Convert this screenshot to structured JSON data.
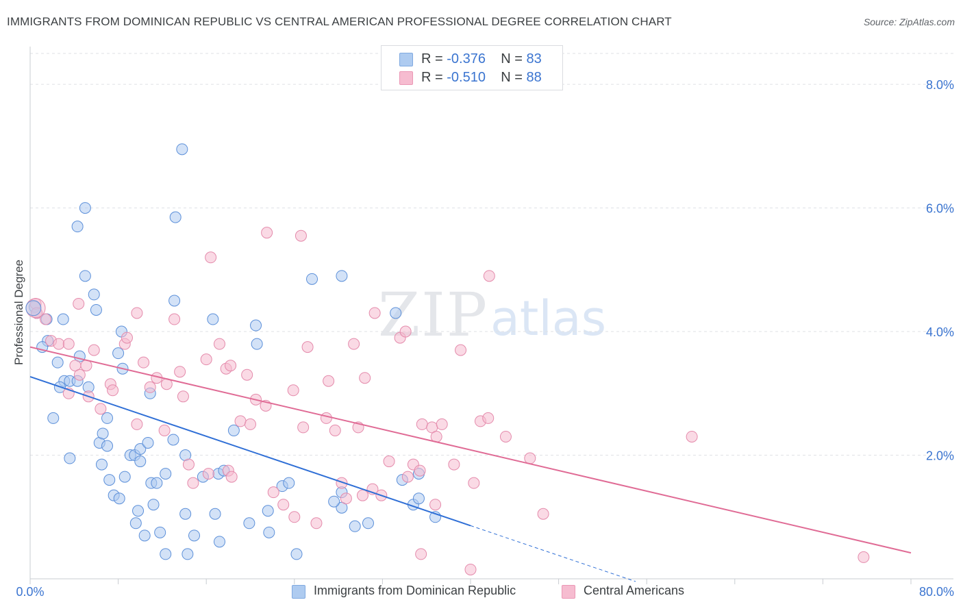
{
  "header": {
    "title": "IMMIGRANTS FROM DOMINICAN REPUBLIC VS CENTRAL AMERICAN PROFESSIONAL DEGREE CORRELATION CHART",
    "source": "Source: ZipAtlas.com"
  },
  "watermark": {
    "zip": "ZIP",
    "atlas": "atlas"
  },
  "stats_legend": {
    "rows": [
      {
        "r_label": "R = ",
        "r_value": "-0.376",
        "n_label": "N = ",
        "n_value": "83",
        "color": "#aecbf0"
      },
      {
        "r_label": "R = ",
        "r_value": "-0.510",
        "n_label": "N = ",
        "n_value": "88",
        "color": "#f6bcd0"
      }
    ]
  },
  "chart_data": {
    "type": "scatter",
    "title": "IMMIGRANTS FROM DOMINICAN REPUBLIC VS CENTRAL AMERICAN PROFESSIONAL DEGREE CORRELATION CHART",
    "xlabel": "",
    "ylabel": "Professional Degree",
    "xlim": [
      0,
      80
    ],
    "ylim": [
      0,
      8.5
    ],
    "x_tick_labels": [
      "0.0%",
      "80.0%"
    ],
    "y_ticks": [
      2,
      4,
      6,
      8
    ],
    "y_tick_labels": [
      "2.0%",
      "4.0%",
      "6.0%",
      "8.0%"
    ],
    "grid": "horizontal dashed",
    "legend_position": "bottom",
    "series": [
      {
        "name": "Immigrants from Dominican Republic",
        "color": "#5b8fd9",
        "fill": "#aecbf0",
        "trend": {
          "x0": 0,
          "y0": 3.27,
          "x1": 40,
          "y1": 0.86,
          "dashed_to_x": 55,
          "color": "#2f6fd6"
        },
        "points": [
          [
            0.4,
            4.4
          ],
          [
            0.6,
            4.3
          ],
          [
            1.6,
            3.85
          ],
          [
            1.1,
            3.75
          ],
          [
            1.5,
            4.2
          ],
          [
            3.0,
            4.2
          ],
          [
            3.1,
            3.2
          ],
          [
            3.6,
            3.2
          ],
          [
            4.3,
            3.2
          ],
          [
            2.7,
            3.1
          ],
          [
            2.1,
            2.6
          ],
          [
            4.5,
            3.6
          ],
          [
            4.3,
            5.7
          ],
          [
            5.0,
            6.0
          ],
          [
            5.0,
            4.9
          ],
          [
            5.8,
            4.6
          ],
          [
            6.0,
            4.35
          ],
          [
            5.3,
            3.1
          ],
          [
            6.3,
            2.2
          ],
          [
            7.0,
            2.15
          ],
          [
            6.6,
            2.35
          ],
          [
            7.0,
            2.6
          ],
          [
            8.0,
            3.65
          ],
          [
            8.4,
            3.4
          ],
          [
            3.6,
            1.95
          ],
          [
            6.5,
            1.85
          ],
          [
            7.2,
            1.6
          ],
          [
            8.6,
            1.65
          ],
          [
            7.6,
            1.35
          ],
          [
            8.1,
            1.3
          ],
          [
            9.1,
            2.0
          ],
          [
            9.5,
            2.0
          ],
          [
            10.0,
            1.9
          ],
          [
            10.0,
            2.1
          ],
          [
            10.7,
            2.2
          ],
          [
            11.0,
            1.55
          ],
          [
            11.5,
            1.55
          ],
          [
            11.2,
            1.2
          ],
          [
            12.3,
            1.7
          ],
          [
            13.0,
            2.25
          ],
          [
            14.1,
            2.0
          ],
          [
            15.7,
            1.65
          ],
          [
            17.1,
            1.7
          ],
          [
            9.6,
            0.9
          ],
          [
            9.8,
            1.1
          ],
          [
            10.4,
            0.7
          ],
          [
            11.8,
            0.75
          ],
          [
            12.3,
            0.4
          ],
          [
            14.1,
            1.05
          ],
          [
            14.3,
            0.4
          ],
          [
            14.9,
            0.7
          ],
          [
            16.8,
            1.05
          ],
          [
            17.2,
            0.6
          ],
          [
            13.1,
            4.5
          ],
          [
            13.2,
            5.85
          ],
          [
            13.8,
            6.95
          ],
          [
            17.6,
            1.75
          ],
          [
            18.5,
            2.4
          ],
          [
            19.9,
            0.9
          ],
          [
            20.6,
            3.8
          ],
          [
            20.5,
            4.1
          ],
          [
            21.7,
            0.75
          ],
          [
            21.6,
            1.1
          ],
          [
            22.9,
            1.5
          ],
          [
            23.5,
            1.55
          ],
          [
            24.2,
            0.4
          ],
          [
            25.6,
            4.85
          ],
          [
            28.3,
            4.9
          ],
          [
            28.3,
            1.4
          ],
          [
            28.3,
            1.15
          ],
          [
            29.5,
            0.85
          ],
          [
            30.7,
            0.9
          ],
          [
            33.2,
            4.3
          ],
          [
            33.8,
            1.6
          ],
          [
            34.8,
            1.2
          ],
          [
            35.3,
            1.7
          ],
          [
            35.3,
            1.3
          ],
          [
            36.8,
            1.0
          ],
          [
            27.6,
            1.25
          ],
          [
            16.6,
            4.2
          ],
          [
            8.3,
            4.0
          ],
          [
            2.5,
            3.5
          ],
          [
            10.9,
            3.0
          ]
        ]
      },
      {
        "name": "Central Americans",
        "color": "#e48aab",
        "fill": "#f6bcd0",
        "trend": {
          "x0": 0,
          "y0": 3.75,
          "x1": 80,
          "y1": 0.42,
          "color": "#e06b95"
        },
        "points": [
          [
            0.5,
            4.45
          ],
          [
            0.6,
            4.3
          ],
          [
            1.4,
            4.2
          ],
          [
            1.9,
            3.85
          ],
          [
            2.6,
            3.8
          ],
          [
            3.5,
            3.8
          ],
          [
            4.1,
            3.45
          ],
          [
            5.1,
            3.45
          ],
          [
            4.5,
            3.3
          ],
          [
            3.5,
            3.0
          ],
          [
            4.4,
            4.45
          ],
          [
            5.8,
            3.7
          ],
          [
            5.3,
            2.95
          ],
          [
            7.3,
            3.15
          ],
          [
            6.4,
            2.75
          ],
          [
            7.5,
            3.05
          ],
          [
            8.6,
            3.8
          ],
          [
            8.8,
            3.9
          ],
          [
            9.7,
            4.3
          ],
          [
            10.3,
            3.5
          ],
          [
            10.9,
            3.1
          ],
          [
            11.5,
            3.25
          ],
          [
            12.2,
            2.4
          ],
          [
            12.4,
            3.15
          ],
          [
            13.1,
            4.2
          ],
          [
            13.6,
            3.35
          ],
          [
            13.9,
            2.95
          ],
          [
            16.0,
            3.55
          ],
          [
            16.4,
            5.2
          ],
          [
            17.2,
            3.8
          ],
          [
            17.8,
            3.4
          ],
          [
            18.2,
            3.45
          ],
          [
            9.7,
            2.5
          ],
          [
            14.4,
            1.85
          ],
          [
            14.8,
            1.55
          ],
          [
            16.2,
            1.7
          ],
          [
            18.0,
            1.75
          ],
          [
            18.3,
            1.65
          ],
          [
            19.1,
            2.55
          ],
          [
            20.0,
            2.5
          ],
          [
            19.7,
            3.3
          ],
          [
            20.5,
            2.9
          ],
          [
            21.4,
            2.8
          ],
          [
            21.5,
            5.6
          ],
          [
            22.1,
            1.4
          ],
          [
            23.0,
            1.2
          ],
          [
            23.9,
            3.05
          ],
          [
            24.0,
            1.0
          ],
          [
            24.8,
            2.45
          ],
          [
            24.6,
            5.55
          ],
          [
            26.0,
            0.9
          ],
          [
            25.2,
            3.75
          ],
          [
            26.9,
            2.6
          ],
          [
            27.1,
            3.2
          ],
          [
            27.7,
            2.4
          ],
          [
            28.7,
            1.3
          ],
          [
            28.3,
            1.55
          ],
          [
            29.4,
            3.8
          ],
          [
            29.8,
            2.45
          ],
          [
            30.2,
            1.35
          ],
          [
            30.4,
            3.25
          ],
          [
            31.1,
            1.45
          ],
          [
            31.9,
            1.35
          ],
          [
            31.3,
            4.3
          ],
          [
            32.6,
            1.9
          ],
          [
            33.6,
            3.9
          ],
          [
            34.1,
            4.0
          ],
          [
            34.3,
            1.65
          ],
          [
            34.8,
            1.85
          ],
          [
            35.4,
            1.75
          ],
          [
            35.5,
            0.4
          ],
          [
            35.6,
            2.5
          ],
          [
            36.5,
            2.45
          ],
          [
            36.8,
            1.2
          ],
          [
            36.9,
            2.3
          ],
          [
            37.4,
            2.5
          ],
          [
            38.5,
            1.85
          ],
          [
            39.1,
            3.7
          ],
          [
            40.0,
            0.15
          ],
          [
            40.3,
            1.55
          ],
          [
            40.9,
            2.55
          ],
          [
            41.6,
            2.6
          ],
          [
            41.7,
            4.9
          ],
          [
            43.2,
            2.3
          ],
          [
            45.4,
            1.95
          ],
          [
            46.6,
            1.05
          ],
          [
            60.1,
            2.3
          ],
          [
            75.7,
            0.35
          ]
        ]
      }
    ]
  }
}
